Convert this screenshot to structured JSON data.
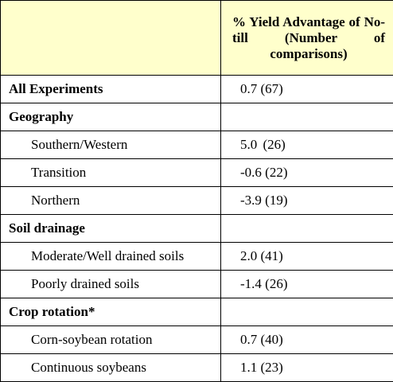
{
  "table": {
    "header": {
      "label": "",
      "value_line1": "% Yield Advantage of",
      "value_line2": "No-till (Number of",
      "value_line3": "comparisons)"
    },
    "rows": [
      {
        "label": "All Experiments",
        "value": "0.7 (67)",
        "type": "section"
      },
      {
        "label": "Geography",
        "value": "",
        "type": "section"
      },
      {
        "label": "Southern/Western",
        "value": "5.0  (26)",
        "type": "sub"
      },
      {
        "label": "Transition",
        "value": "-0.6 (22)",
        "type": "sub"
      },
      {
        "label": "Northern",
        "value": "-3.9 (19)",
        "type": "sub"
      },
      {
        "label": "Soil drainage",
        "value": "",
        "type": "section"
      },
      {
        "label": "Moderate/Well drained soils",
        "value": "2.0 (41)",
        "type": "sub"
      },
      {
        "label": "Poorly drained soils",
        "value": "-1.4 (26)",
        "type": "sub"
      },
      {
        "label": "Crop rotation*",
        "value": "",
        "type": "section"
      },
      {
        "label": "Corn-soybean rotation",
        "value": "0.7 (40)",
        "type": "sub"
      },
      {
        "label": "Continuous soybeans",
        "value": "1.1 (23)",
        "type": "sub"
      }
    ]
  },
  "colors": {
    "header_background": "#ffffcc",
    "border": "#000000",
    "text": "#000000"
  }
}
